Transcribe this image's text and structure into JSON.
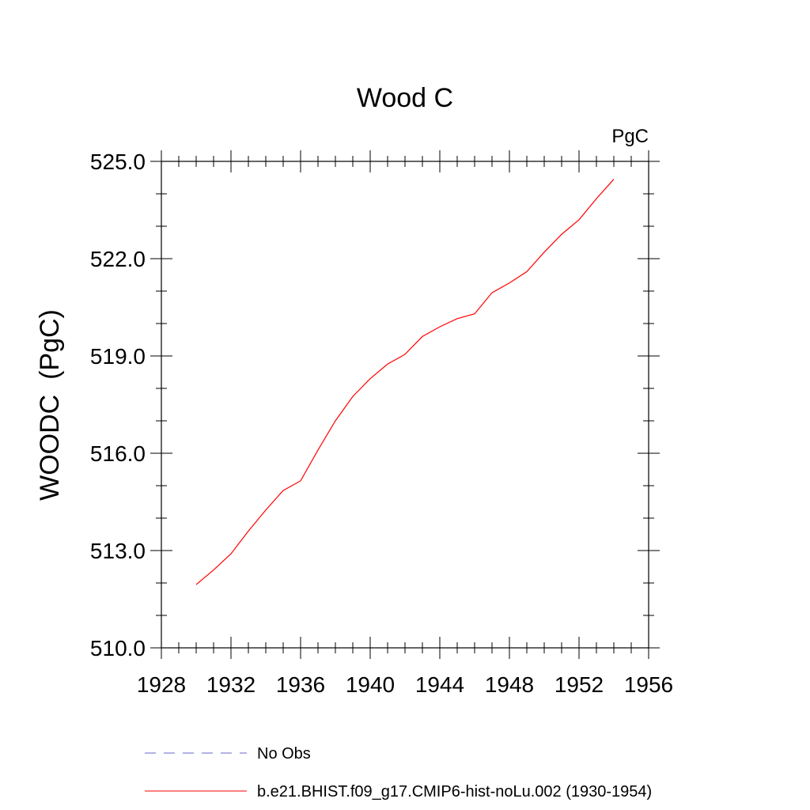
{
  "chart_data": {
    "type": "line",
    "title": "Wood C",
    "units_label": "PgC",
    "xlabel": "",
    "ylabel": "WOODC  (PgC)",
    "xlim": [
      1928,
      1956
    ],
    "ylim": [
      510.0,
      525.0
    ],
    "x_ticks": [
      1928,
      1932,
      1936,
      1940,
      1944,
      1948,
      1952,
      1956
    ],
    "x_tick_labels": [
      "1928",
      "1932",
      "1936",
      "1940",
      "1944",
      "1948",
      "1952",
      "1956"
    ],
    "y_ticks": [
      510.0,
      513.0,
      516.0,
      519.0,
      522.0,
      525.0
    ],
    "y_tick_labels": [
      "510.0",
      "513.0",
      "516.0",
      "519.0",
      "522.0",
      "525.0"
    ],
    "x_minor_step": 1,
    "y_minor_step": 1,
    "grid": false,
    "legend_position": "bottom",
    "series": [
      {
        "name": "No Obs",
        "color": "#6666cc",
        "dash": "dashed",
        "x": [],
        "y": []
      },
      {
        "name": "b.e21.BHIST.f09_g17.CMIP6-hist-noLu.002 (1930-1954)",
        "color": "#ff0000",
        "dash": "solid",
        "x": [
          1930,
          1931,
          1932,
          1933,
          1934,
          1935,
          1936,
          1937,
          1938,
          1939,
          1940,
          1941,
          1942,
          1943,
          1944,
          1945,
          1946,
          1947,
          1948,
          1949,
          1950,
          1951,
          1952,
          1953,
          1954
        ],
        "y": [
          511.95,
          512.4,
          512.9,
          513.6,
          514.25,
          514.85,
          515.15,
          516.1,
          517.0,
          517.75,
          518.3,
          518.75,
          519.05,
          519.6,
          519.9,
          520.15,
          520.3,
          520.95,
          521.25,
          521.6,
          522.2,
          522.75,
          523.2,
          523.85,
          524.45
        ]
      }
    ]
  }
}
